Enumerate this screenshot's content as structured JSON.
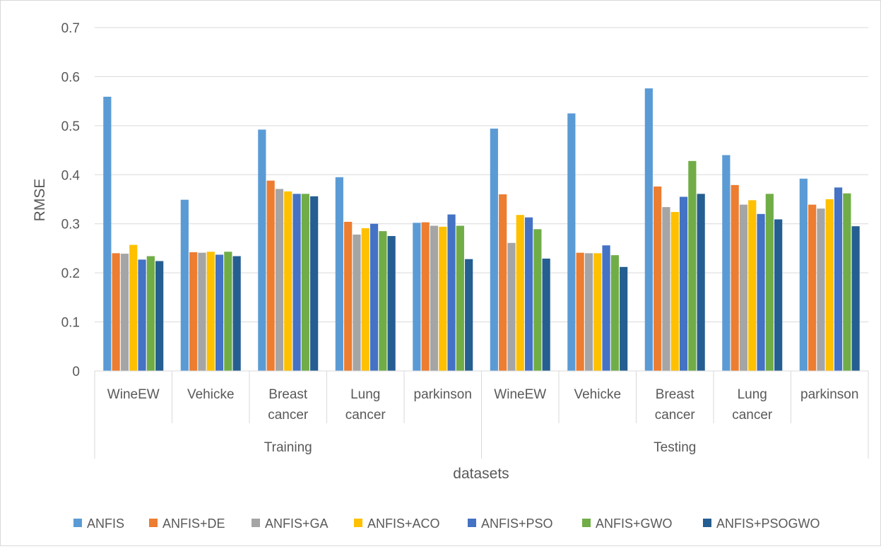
{
  "chart_data": {
    "type": "bar",
    "title": "",
    "xlabel": "datasets",
    "ylabel": "RMSE",
    "ylim": [
      0,
      0.7
    ],
    "yticks": [
      "0",
      "0.1",
      "0.2",
      "0.3",
      "0.4",
      "0.5",
      "0.6",
      "0.7"
    ],
    "grid": true,
    "legend_position": "bottom",
    "groups": [
      {
        "name": "Training",
        "categories": [
          [
            "WineEW"
          ],
          [
            "Vehicke"
          ],
          [
            "Breast",
            "cancer"
          ],
          [
            "Lung",
            "cancer"
          ],
          [
            "parkinson"
          ]
        ]
      },
      {
        "name": "Testing",
        "categories": [
          [
            "WineEW"
          ],
          [
            "Vehicke"
          ],
          [
            "Breast",
            "cancer"
          ],
          [
            "Lung",
            "cancer"
          ],
          [
            "parkinson"
          ]
        ]
      }
    ],
    "categories": [
      "Training WineEW",
      "Training Vehicke",
      "Training Breast cancer",
      "Training Lung cancer",
      "Training parkinson",
      "Testing WineEW",
      "Testing Vehicke",
      "Testing Breast cancer",
      "Testing Lung cancer",
      "Testing parkinson"
    ],
    "series": [
      {
        "name": "ANFIS",
        "color": "#5B9BD5",
        "values": [
          0.559,
          0.349,
          0.492,
          0.395,
          0.302,
          0.494,
          0.525,
          0.576,
          0.44,
          0.392
        ]
      },
      {
        "name": "ANFIS+DE",
        "color": "#ED7D31",
        "values": [
          0.24,
          0.242,
          0.388,
          0.304,
          0.303,
          0.36,
          0.241,
          0.376,
          0.379,
          0.339
        ]
      },
      {
        "name": "ANFIS+GA",
        "color": "#A5A5A5",
        "values": [
          0.239,
          0.241,
          0.371,
          0.278,
          0.296,
          0.261,
          0.24,
          0.334,
          0.339,
          0.331
        ]
      },
      {
        "name": "ANFIS+ACO",
        "color": "#FFC000",
        "values": [
          0.257,
          0.243,
          0.366,
          0.291,
          0.294,
          0.318,
          0.24,
          0.324,
          0.348,
          0.35
        ]
      },
      {
        "name": "ANFIS+PSO",
        "color": "#4472C4",
        "values": [
          0.227,
          0.237,
          0.361,
          0.3,
          0.319,
          0.313,
          0.256,
          0.355,
          0.32,
          0.374
        ]
      },
      {
        "name": "ANFIS+GWO",
        "color": "#70AD47",
        "values": [
          0.234,
          0.243,
          0.361,
          0.285,
          0.296,
          0.289,
          0.236,
          0.428,
          0.361,
          0.362
        ]
      },
      {
        "name": "ANFIS+PSOGWO",
        "color": "#255E91",
        "values": [
          0.224,
          0.234,
          0.356,
          0.275,
          0.228,
          0.229,
          0.212,
          0.361,
          0.309,
          0.295
        ]
      }
    ]
  }
}
